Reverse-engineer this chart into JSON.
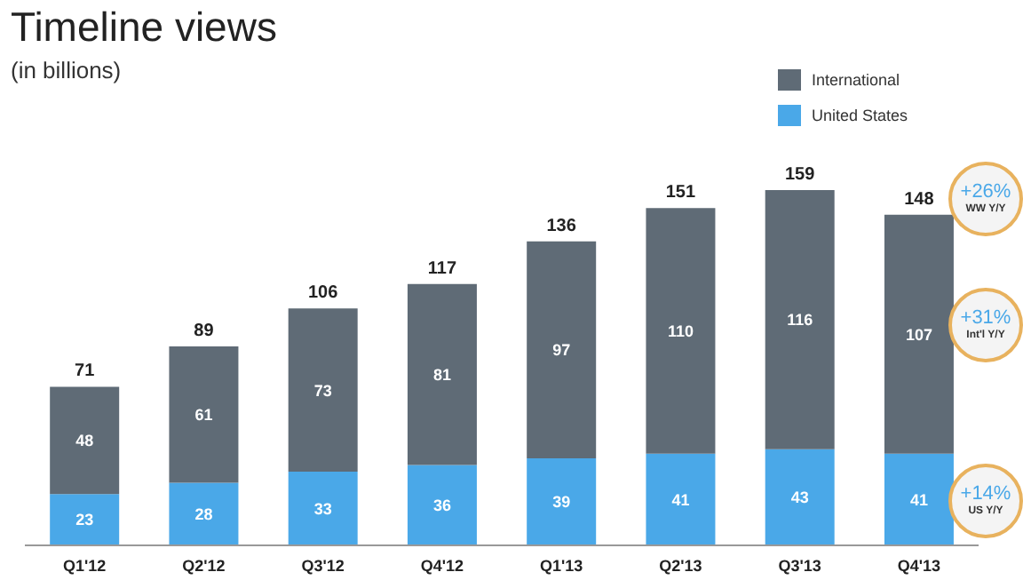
{
  "chart_data": {
    "type": "bar",
    "title": "Timeline views",
    "subtitle": "(in billions)",
    "stacked": true,
    "data_labels": true,
    "legend": "top right",
    "grid": false,
    "categories": [
      "Q1'12",
      "Q2'12",
      "Q3'12",
      "Q4'12",
      "Q1'13",
      "Q2'13",
      "Q3'13",
      "Q4'13"
    ],
    "series": [
      {
        "name": "United States",
        "color": "#4aa8e8",
        "values": [
          23,
          28,
          33,
          36,
          39,
          41,
          43,
          41
        ]
      },
      {
        "name": "International",
        "color": "#5f6b76",
        "values": [
          48,
          61,
          73,
          81,
          97,
          110,
          116,
          107
        ]
      }
    ],
    "totals": [
      "71",
      "89",
      "106",
      "117",
      "136",
      "151",
      "159",
      "148"
    ],
    "annotations": [
      "+26% WW Y/Y",
      "+31% Int'l Y/Y",
      "+14% US Y/Y"
    ]
  }
}
